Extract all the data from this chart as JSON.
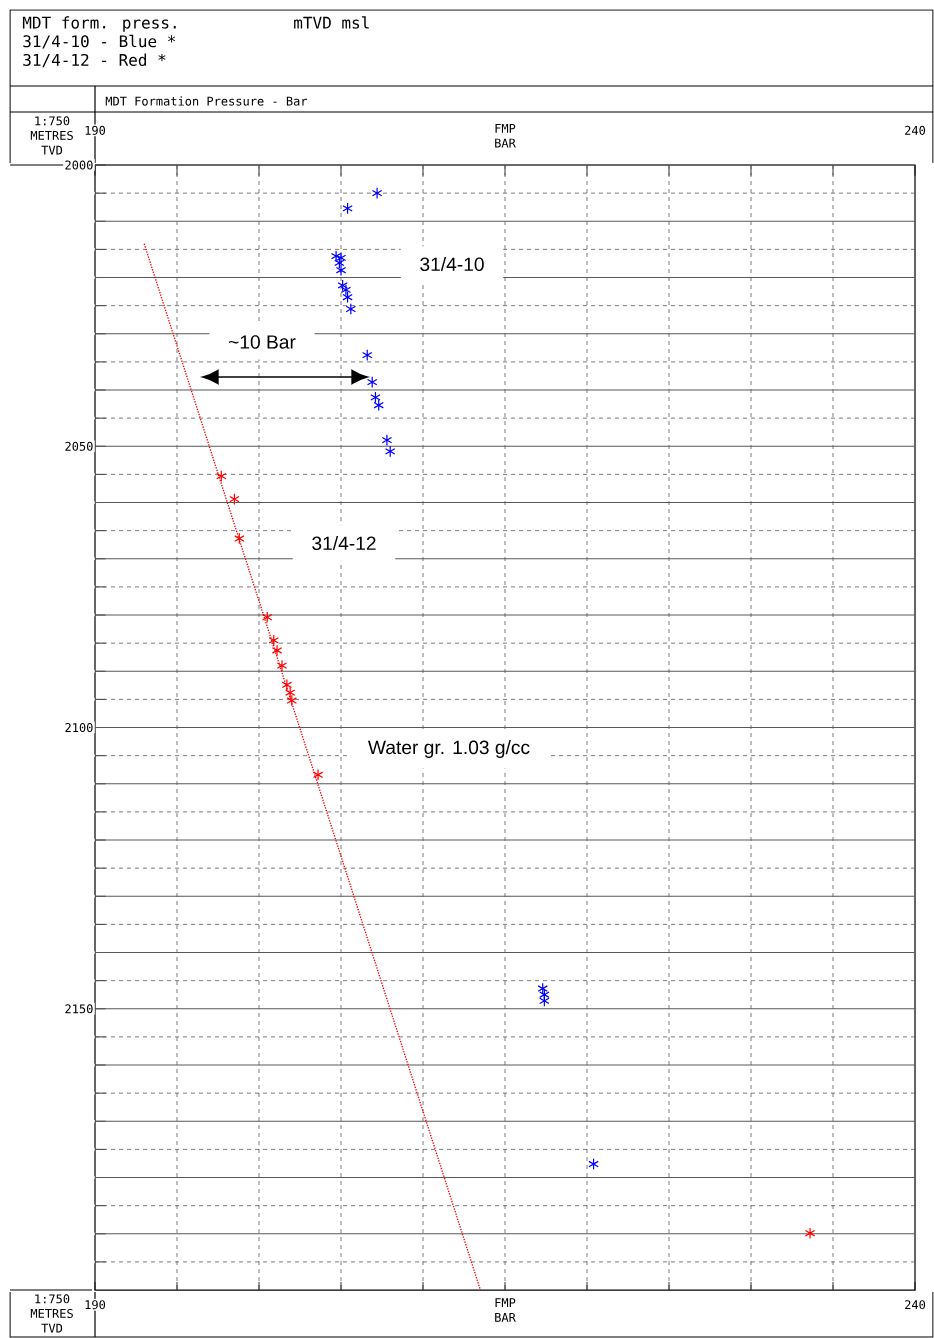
{
  "chart_data": {
    "type": "scatter",
    "title": "MDT form. press.",
    "xlabel": "MDT Formation Pressure - Bar",
    "ylabel": "METRES TVD",
    "xlim": [
      190,
      240
    ],
    "xticks": [
      190,
      {
        "value": 195,
        "label": null
      },
      {
        "value": 200,
        "label": null
      },
      {
        "value": 205,
        "label": null
      },
      {
        "value": 210,
        "label": null
      },
      {
        "value": 215,
        "label": null
      },
      {
        "value": 220,
        "label": null
      },
      {
        "value": 225,
        "label": null
      },
      {
        "value": 230,
        "label": null
      },
      {
        "value": 235,
        "label": null
      },
      240
    ],
    "x2lim": [
      190,
      240
    ],
    "x2ticks": [
      190,
      {
        "value": 195,
        "label": null
      },
      {
        "value": 200,
        "label": null
      },
      {
        "value": 205,
        "label": null
      },
      {
        "value": 210,
        "label": null
      },
      {
        "value": 215,
        "label": null
      },
      {
        "value": 220,
        "label": null
      },
      {
        "value": 225,
        "label": null
      },
      {
        "value": 230,
        "label": null
      },
      {
        "value": 235,
        "label": null
      },
      240
    ],
    "ylim": [
      2200,
      2000
    ],
    "yticks": [
      2000,
      {
        "value": 2005,
        "label": null
      },
      {
        "value": 2010,
        "label": null
      },
      {
        "value": 2015,
        "label": null
      },
      {
        "value": 2020,
        "label": null
      },
      {
        "value": 2025,
        "label": null
      },
      {
        "value": 2030,
        "label": null
      },
      {
        "value": 2035,
        "label": null
      },
      {
        "value": 2040,
        "label": null
      },
      {
        "value": 2045,
        "label": null
      },
      2050,
      {
        "value": 2055,
        "label": null
      },
      {
        "value": 2060,
        "label": null
      },
      {
        "value": 2065,
        "label": null
      },
      {
        "value": 2070,
        "label": null
      },
      {
        "value": 2075,
        "label": null
      },
      {
        "value": 2080,
        "label": null
      },
      {
        "value": 2085,
        "label": null
      },
      {
        "value": 2090,
        "label": null
      },
      {
        "value": 2095,
        "label": null
      },
      2100,
      {
        "value": 2105,
        "label": null
      },
      {
        "value": 2110,
        "label": null
      },
      {
        "value": 2115,
        "label": null
      },
      {
        "value": 2120,
        "label": null
      },
      {
        "value": 2125,
        "label": null
      },
      {
        "value": 2130,
        "label": null
      },
      {
        "value": 2135,
        "label": null
      },
      {
        "value": 2140,
        "label": null
      },
      {
        "value": 2145,
        "label": null
      },
      2150,
      {
        "value": 2155,
        "label": null
      },
      {
        "value": 2160,
        "label": null
      },
      {
        "value": 2165,
        "label": null
      },
      {
        "value": 2170,
        "label": null
      },
      {
        "value": 2175,
        "label": null
      },
      {
        "value": 2180,
        "label": null
      },
      {
        "value": 2185,
        "label": null
      },
      {
        "value": 2190,
        "label": null
      },
      {
        "value": 2195,
        "label": null
      }
    ],
    "grid": true,
    "marker": "cross",
    "series": [
      {
        "color": "#0000ff",
        "x": [
          207.2,
          205.4,
          204.7,
          205.0,
          204.9,
          205.0,
          205.1,
          205.3,
          205.4,
          205.6,
          206.6,
          206.9,
          207.1,
          207.3,
          207.8,
          208.0,
          217.3,
          217.4,
          217.4,
          220.4
        ],
        "values": [
          2005.0,
          2007.7,
          2016.2,
          2016.5,
          2017.4,
          2018.7,
          2021.4,
          2022.2,
          2023.5,
          2025.6,
          2033.8,
          2038.6,
          2041.3,
          2042.7,
          2048.9,
          2050.9,
          2146.4,
          2147.5,
          2148.6,
          2177.6
        ]
      },
      {
        "color": "#ff0000",
        "x": [
          197.7,
          198.5,
          198.8,
          200.5,
          200.9,
          201.1,
          201.4,
          201.7,
          201.9,
          202.0,
          203.6,
          233.6
        ],
        "values": [
          2055.3,
          2059.4,
          2066.4,
          2080.4,
          2084.5,
          2086.3,
          2089.0,
          2092.4,
          2093.8,
          2095.2,
          2108.4,
          2189.9
        ]
      },
      {
        "type": "line",
        "color": "#ff0000",
        "line_style": "dotted",
        "marker": "none",
        "x": [
          193.0,
          213.5
        ],
        "values": [
          2014.0,
          2200.0
        ]
      }
    ],
    "annotations": [
      "mTVD msl",
      "31/4-10 - Blue *",
      "31/4-12 - Red *",
      "1:750",
      "FMP BAR",
      "31/4-10",
      "~10 Bar",
      "31/4-12",
      "Water gr. 1.03 g/cc"
    ]
  }
}
